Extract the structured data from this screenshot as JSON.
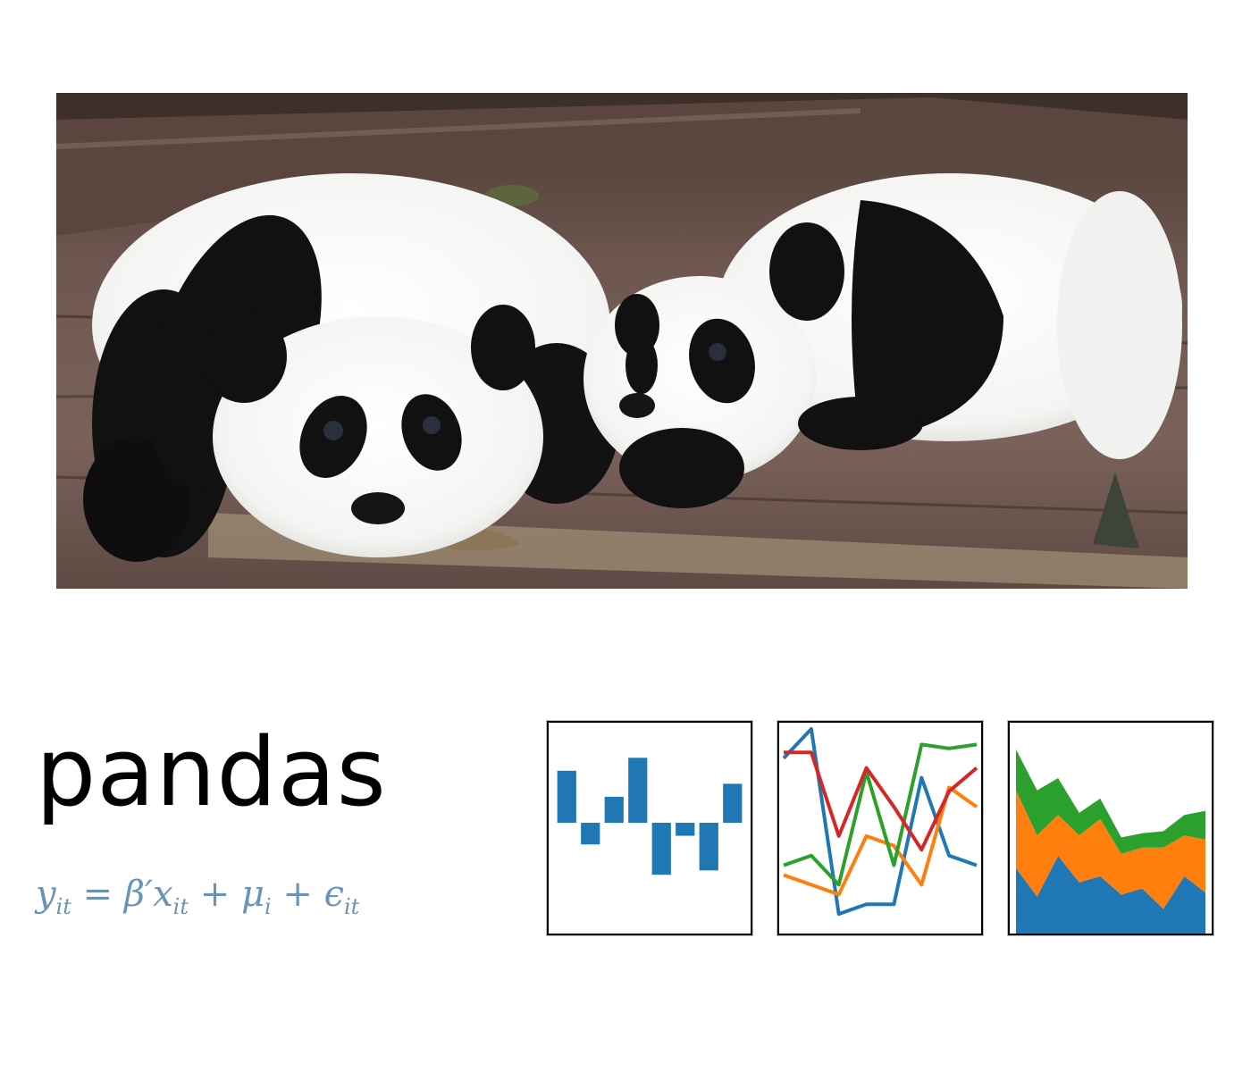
{
  "logo": {
    "wordmark": "pandas",
    "formula": {
      "y": "y",
      "y_sub": "it",
      "eq": "=",
      "beta": "β′",
      "x": "x",
      "x_sub": "it",
      "plus1": "+",
      "mu": "μ",
      "mu_sub": "i",
      "plus2": "+",
      "eps": "ϵ",
      "eps_sub": "it"
    }
  },
  "photo": {
    "subject": "two giant panda cubs lying on wooden logs"
  },
  "colors": {
    "blue": "#1f77b4",
    "orange": "#ff7f0e",
    "green": "#2ca02c",
    "red": "#d62728",
    "formula": "#6b93b5"
  },
  "chart_data": [
    {
      "type": "bar",
      "values": [
        0.6,
        -0.25,
        0.3,
        0.75,
        -0.6,
        -0.15,
        -0.55,
        0.45
      ],
      "ylim": [
        -1,
        1
      ],
      "grid": false
    },
    {
      "type": "line",
      "series": [
        {
          "color": "blue",
          "values": [
            0.85,
            1.0,
            0.05,
            0.1,
            0.1,
            0.75,
            0.35,
            0.3
          ]
        },
        {
          "color": "orange",
          "values": [
            0.25,
            0.2,
            0.15,
            0.45,
            0.4,
            0.2,
            0.7,
            0.6
          ]
        },
        {
          "color": "green",
          "values": [
            0.3,
            0.35,
            0.2,
            0.78,
            0.3,
            0.92,
            0.9,
            0.92
          ]
        },
        {
          "color": "red",
          "values": [
            0.88,
            0.88,
            0.45,
            0.8,
            0.6,
            0.38,
            0.68,
            0.8
          ]
        }
      ],
      "ylim": [
        0,
        1
      ],
      "grid": false
    },
    {
      "type": "area",
      "stacked": true,
      "series": [
        {
          "color": "blue",
          "values": [
            0.32,
            0.18,
            0.38,
            0.25,
            0.28,
            0.19,
            0.22,
            0.12,
            0.28,
            0.2
          ]
        },
        {
          "color": "orange",
          "values": [
            0.38,
            0.3,
            0.2,
            0.23,
            0.28,
            0.2,
            0.2,
            0.3,
            0.2,
            0.26
          ]
        },
        {
          "color": "green",
          "values": [
            0.2,
            0.22,
            0.18,
            0.11,
            0.1,
            0.08,
            0.07,
            0.08,
            0.1,
            0.14
          ]
        }
      ],
      "ylim": [
        0,
        1
      ],
      "grid": false
    }
  ]
}
